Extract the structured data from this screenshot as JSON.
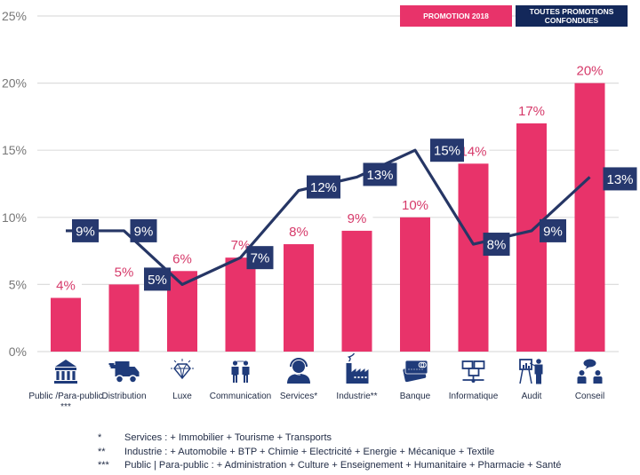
{
  "colors": {
    "bar": "#e8336a",
    "line": "#263665",
    "label_box": "#26386e",
    "legend_pink": "#e8336a",
    "legend_navy": "#13285a",
    "icon": "#1f3b7a"
  },
  "legend": {
    "promotion_2018": "PROMOTION 2018",
    "all_promotions": "TOUTES PROMOTIONS CONFONDUES"
  },
  "chart_data": {
    "type": "bar",
    "title": "",
    "xlabel": "",
    "ylabel": "",
    "ylim": [
      0,
      25
    ],
    "yticks": [
      "0%",
      "5%",
      "10%",
      "15%",
      "20%",
      "25%"
    ],
    "ytick_values": [
      0,
      5,
      10,
      15,
      20,
      25
    ],
    "grid": true,
    "legend_position": "top-right",
    "categories": [
      "Public /Para-public",
      "Distribution",
      "Luxe",
      "Communication",
      "Services*",
      "Industrie**",
      "Banque",
      "Informatique",
      "Audit",
      "Conseil"
    ],
    "category_sublabels": [
      "***",
      "",
      "",
      "",
      "",
      "",
      "",
      "",
      "",
      ""
    ],
    "category_icons": [
      "bank-icon",
      "delivery-truck-icon",
      "diamond-icon",
      "communication-people-icon",
      "headset-operator-icon",
      "factory-icon",
      "credit-card-icon",
      "network-computers-icon",
      "presentation-icon",
      "consulting-chat-icon"
    ],
    "series": [
      {
        "name": "PROMOTION 2018",
        "type": "bar",
        "values": [
          4,
          5,
          6,
          7,
          8,
          9,
          10,
          14,
          17,
          20
        ],
        "labels": [
          "4%",
          "5%",
          "6%",
          "7%",
          "8%",
          "9%",
          "10%",
          "14%",
          "17%",
          "20%"
        ]
      },
      {
        "name": "TOUTES PROMOTIONS CONFONDUES",
        "type": "line",
        "values": [
          9,
          9,
          5,
          7,
          12,
          13,
          15,
          8,
          9,
          13
        ],
        "labels": [
          "9%",
          "9%",
          "5%",
          "7%",
          "12%",
          "13%",
          "15%",
          "8%",
          "9%",
          "13%"
        ]
      }
    ]
  },
  "footnotes": [
    {
      "mark": "*",
      "text": "Services : + Immobilier + Tourisme + Transports"
    },
    {
      "mark": "**",
      "text": "Industrie : + Automobile + BTP + Chimie + Electricité + Energie + Mécanique + Textile"
    },
    {
      "mark": "***",
      "text": "Public | Para-public : + Administration + Culture + Enseignement + Humanitaire + Pharmacie + Santé"
    }
  ]
}
